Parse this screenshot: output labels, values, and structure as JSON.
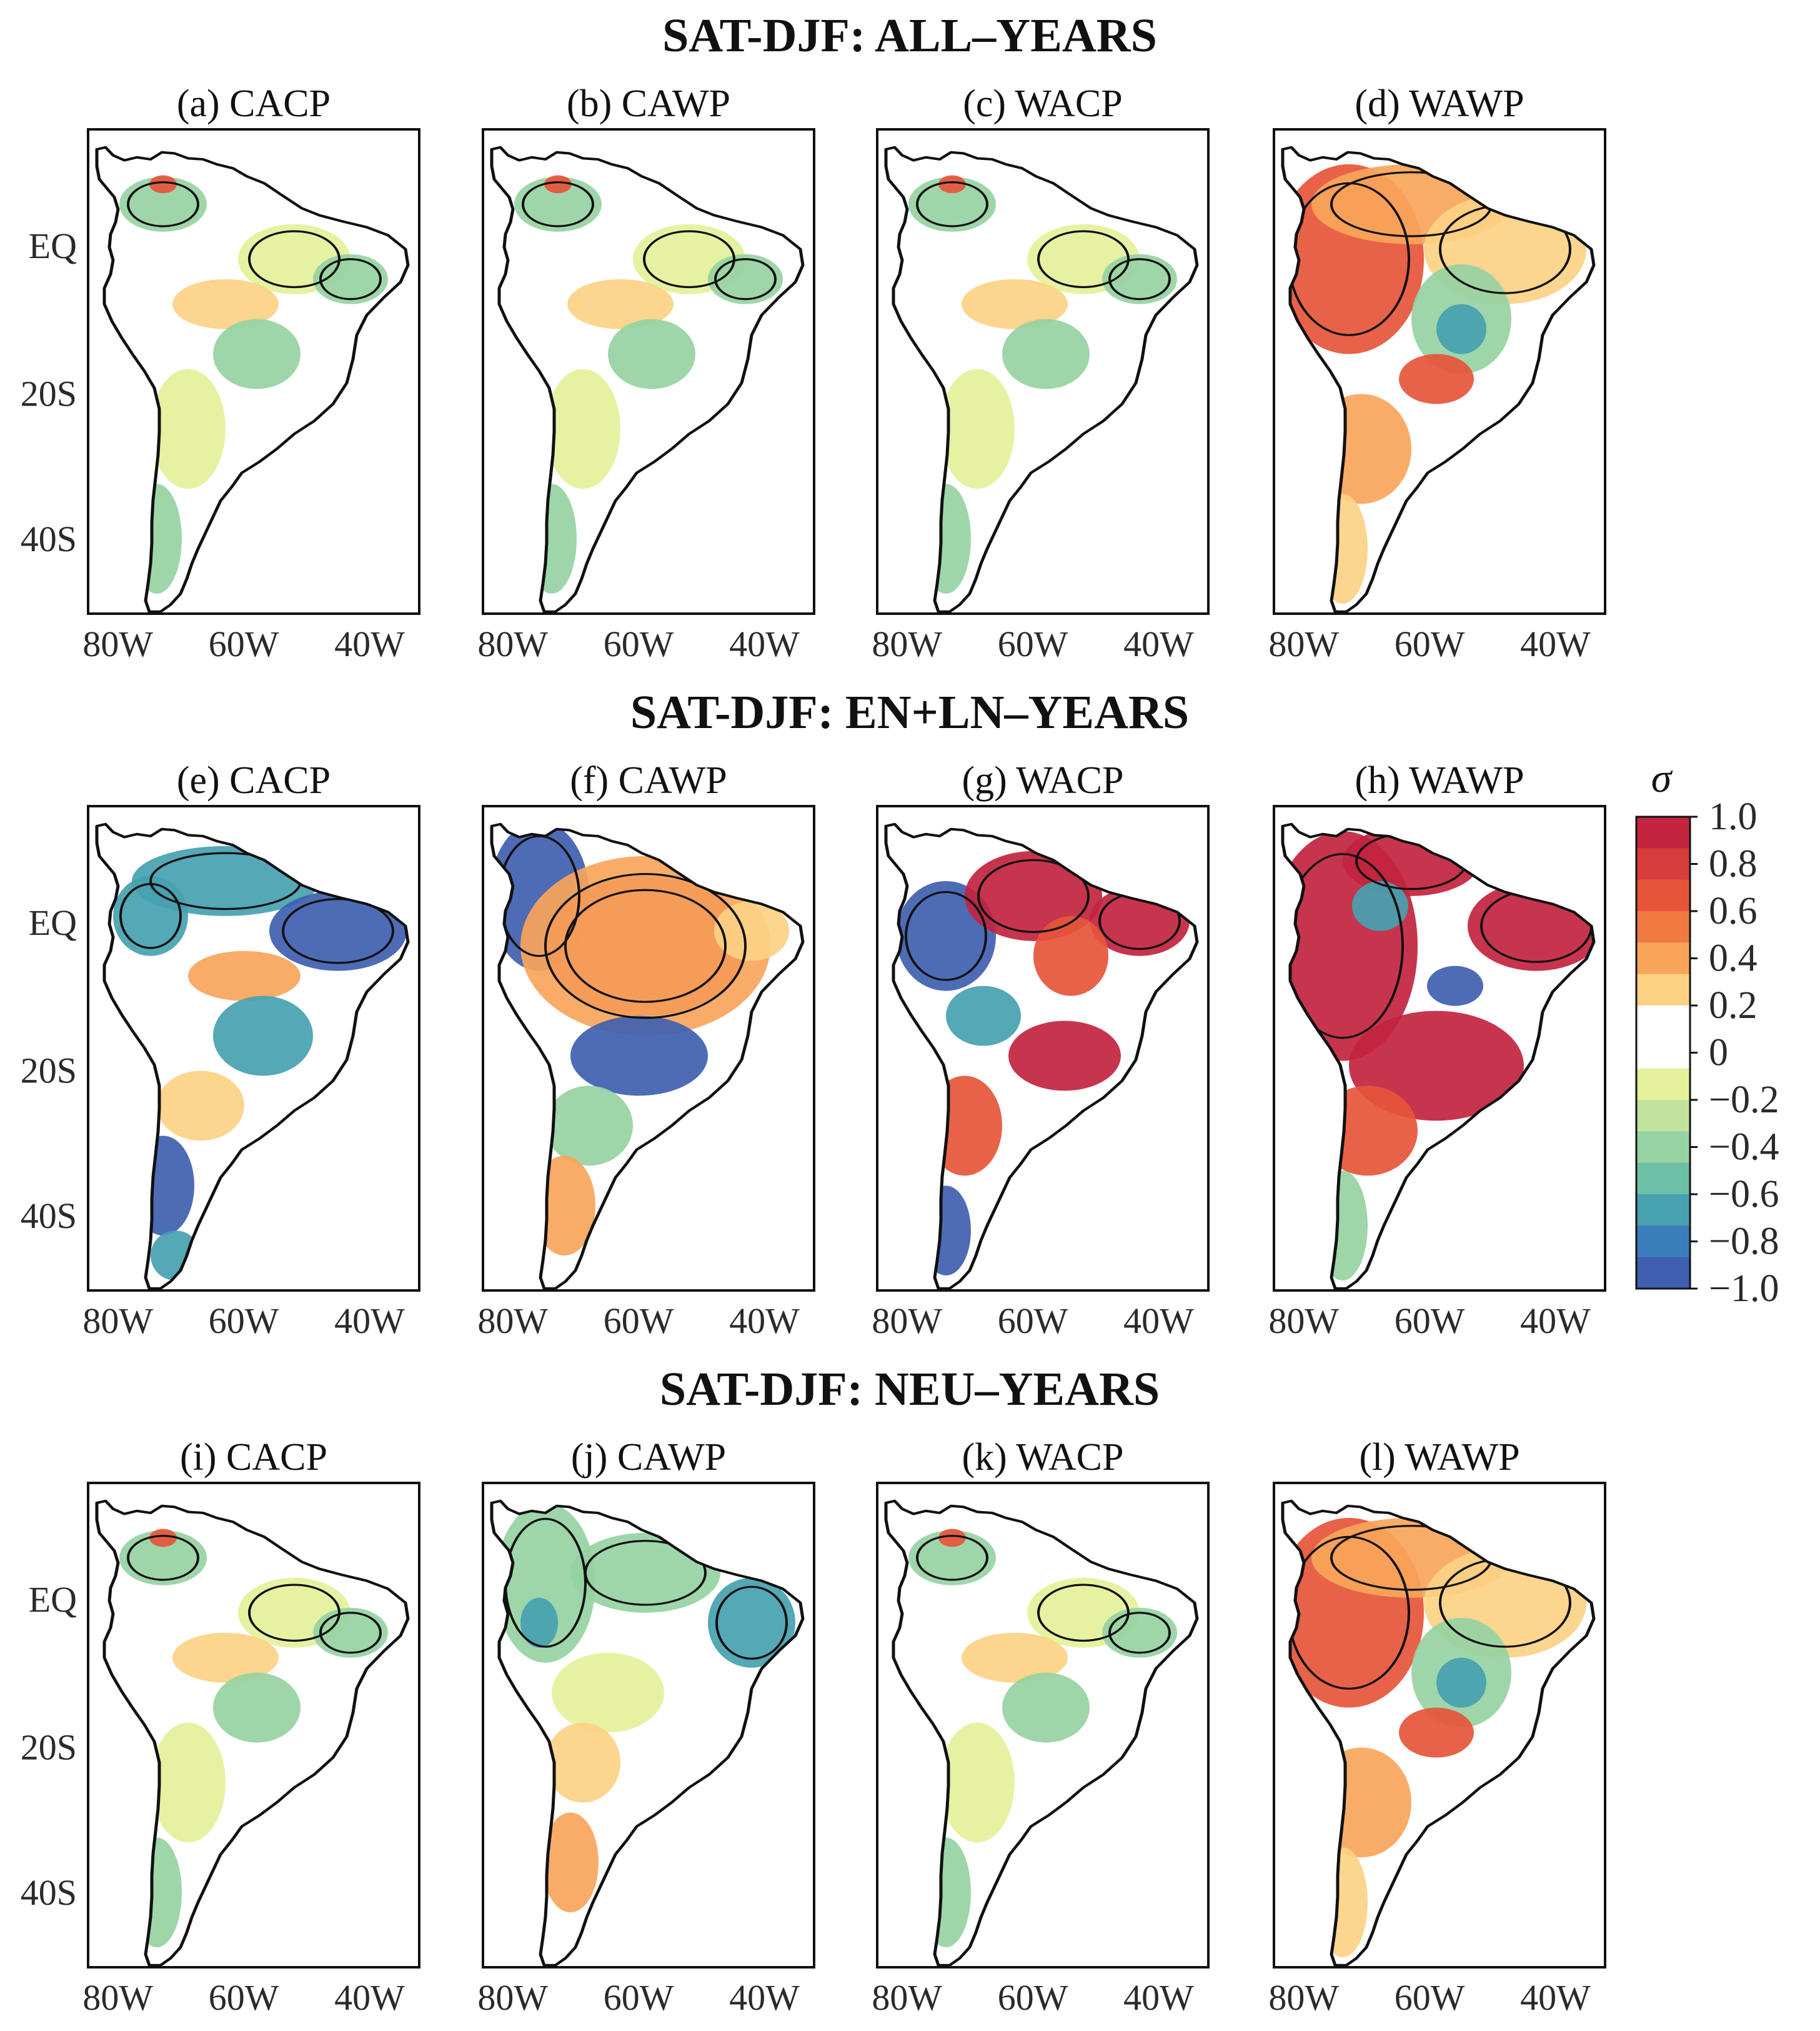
{
  "figure": {
    "sections": [
      {
        "title": "SAT-DJF: ALL–YEARS",
        "panels": [
          {
            "label": "(a) CACP",
            "anomaly_sign": "mixed-weak"
          },
          {
            "label": "(b) CAWP",
            "anomaly_sign": "mixed-weak"
          },
          {
            "label": "(c) WACP",
            "anomaly_sign": "mixed-weak"
          },
          {
            "label": "(d) WAWP",
            "anomaly_sign": "warm-west"
          }
        ]
      },
      {
        "title": "SAT-DJF: EN+LN–YEARS",
        "panels": [
          {
            "label": "(e) CACP",
            "anomaly_sign": "cold-strong"
          },
          {
            "label": "(f) CAWP",
            "anomaly_sign": "warm-center"
          },
          {
            "label": "(g) WACP",
            "anomaly_sign": "mixed-strong"
          },
          {
            "label": "(h) WAWP",
            "anomaly_sign": "warm-strong"
          }
        ]
      },
      {
        "title": "SAT-DJF: NEU–YEARS",
        "panels": [
          {
            "label": "(i) CACP",
            "anomaly_sign": "mixed-weak"
          },
          {
            "label": "(j) CAWP",
            "anomaly_sign": "cold-weak"
          },
          {
            "label": "(k) WACP",
            "anomaly_sign": "mixed-weak"
          },
          {
            "label": "(l) WAWP",
            "anomaly_sign": "warm-west"
          }
        ]
      }
    ],
    "x_ticks": [
      "80W",
      "60W",
      "40W"
    ],
    "y_ticks": [
      "EQ",
      "20S",
      "40S"
    ]
  },
  "colorbar": {
    "unit": "σ",
    "labels": [
      "1.0",
      "0.8",
      "0.6",
      "0.4",
      "0.2",
      "0",
      "−0.2",
      "−0.4",
      "−0.6",
      "−0.8",
      "−1.0"
    ],
    "colors": [
      "#c2233f",
      "#d73d3b",
      "#e6553a",
      "#f07a42",
      "#f8a55a",
      "#fcd184",
      "#ffffff",
      "#ffffff",
      "#e4f19a",
      "#c2e39e",
      "#96d3a3",
      "#6cc0a6",
      "#47a1b0",
      "#3a7fbb",
      "#3f5fb0"
    ]
  },
  "palette": {
    "warm_strong": "#c2233f",
    "warm": "#e6553a",
    "warm_light": "#f8a55a",
    "warm_pale": "#fcd184",
    "neutral": "#ffffff",
    "cool_pale": "#e4f19a",
    "cool_light": "#96d3a3",
    "cool": "#47a1b0",
    "cool_strong": "#3f5fb0"
  }
}
